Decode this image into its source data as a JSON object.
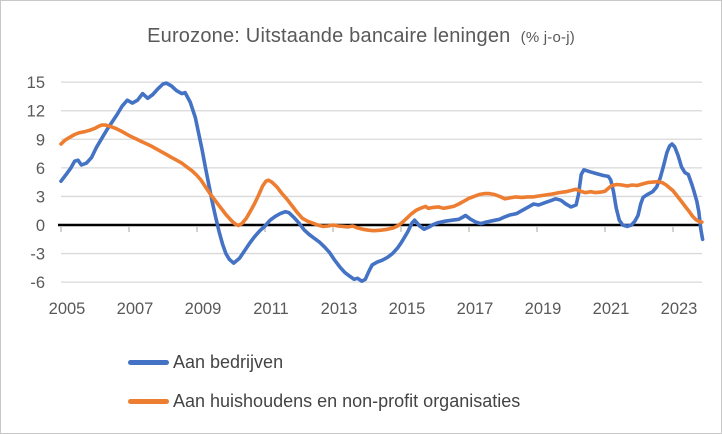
{
  "title": {
    "text": "Eurozone: Uitstaande bancaire leningen",
    "suffix": "(% j-o-j)"
  },
  "legend": [
    {
      "label": "Aan bedrijven",
      "color": "#4472C4"
    },
    {
      "label": "Aan huishoudens en non-profit organisaties",
      "color": "#ED7D31"
    }
  ],
  "colors": {
    "background": "#FFFFFF",
    "border": "#C8C8C8",
    "grid": "#D9D9D9",
    "zero_axis": "#000000",
    "tick": "#A6A6A6",
    "axis_text": "#595959",
    "series_blue": "#4472C4",
    "series_orange": "#ED7D31"
  },
  "chart_data": {
    "type": "line",
    "title": "Eurozone: Uitstaande bancaire leningen (% j-o-j)",
    "xlabel": "",
    "ylabel": "",
    "ylim": [
      -6,
      15
    ],
    "xlim": [
      2005,
      2023.9
    ],
    "y_ticks": [
      15,
      12,
      9,
      6,
      3,
      0,
      -3,
      -6
    ],
    "x_ticks": [
      2005,
      2007,
      2009,
      2011,
      2013,
      2015,
      2017,
      2019,
      2021,
      2023
    ],
    "grid": "horizontal",
    "legend_position": "bottom-left",
    "series": [
      {
        "name": "Aan bedrijven",
        "color": "#4472C4",
        "points": [
          [
            2005.0,
            4.6
          ],
          [
            2005.15,
            5.3
          ],
          [
            2005.29,
            6.0
          ],
          [
            2005.4,
            6.7
          ],
          [
            2005.5,
            6.8
          ],
          [
            2005.6,
            6.3
          ],
          [
            2005.75,
            6.5
          ],
          [
            2005.9,
            7.1
          ],
          [
            2006.05,
            8.2
          ],
          [
            2006.2,
            9.1
          ],
          [
            2006.35,
            10.0
          ],
          [
            2006.5,
            10.8
          ],
          [
            2006.65,
            11.6
          ],
          [
            2006.8,
            12.5
          ],
          [
            2006.95,
            13.1
          ],
          [
            2007.1,
            12.8
          ],
          [
            2007.25,
            13.1
          ],
          [
            2007.4,
            13.8
          ],
          [
            2007.55,
            13.3
          ],
          [
            2007.7,
            13.7
          ],
          [
            2007.85,
            14.3
          ],
          [
            2008.0,
            14.8
          ],
          [
            2008.1,
            14.9
          ],
          [
            2008.25,
            14.6
          ],
          [
            2008.4,
            14.1
          ],
          [
            2008.55,
            13.8
          ],
          [
            2008.65,
            13.9
          ],
          [
            2008.8,
            12.9
          ],
          [
            2008.95,
            11.3
          ],
          [
            2009.05,
            9.6
          ],
          [
            2009.15,
            7.9
          ],
          [
            2009.25,
            6.0
          ],
          [
            2009.35,
            4.2
          ],
          [
            2009.45,
            2.4
          ],
          [
            2009.55,
            0.8
          ],
          [
            2009.65,
            -0.7
          ],
          [
            2009.75,
            -2.0
          ],
          [
            2009.85,
            -3.0
          ],
          [
            2009.95,
            -3.6
          ],
          [
            2010.08,
            -4.0
          ],
          [
            2010.25,
            -3.5
          ],
          [
            2010.4,
            -2.7
          ],
          [
            2010.55,
            -1.9
          ],
          [
            2010.7,
            -1.2
          ],
          [
            2010.85,
            -0.6
          ],
          [
            2011.0,
            -0.1
          ],
          [
            2011.15,
            0.5
          ],
          [
            2011.3,
            0.9
          ],
          [
            2011.45,
            1.2
          ],
          [
            2011.6,
            1.4
          ],
          [
            2011.7,
            1.3
          ],
          [
            2011.85,
            0.8
          ],
          [
            2012.0,
            0.2
          ],
          [
            2012.15,
            -0.5
          ],
          [
            2012.3,
            -1.0
          ],
          [
            2012.45,
            -1.4
          ],
          [
            2012.6,
            -1.8
          ],
          [
            2012.75,
            -2.3
          ],
          [
            2012.9,
            -2.9
          ],
          [
            2013.05,
            -3.7
          ],
          [
            2013.2,
            -4.4
          ],
          [
            2013.35,
            -5.0
          ],
          [
            2013.5,
            -5.4
          ],
          [
            2013.62,
            -5.7
          ],
          [
            2013.72,
            -5.6
          ],
          [
            2013.85,
            -5.9
          ],
          [
            2013.95,
            -5.7
          ],
          [
            2014.05,
            -4.9
          ],
          [
            2014.15,
            -4.2
          ],
          [
            2014.3,
            -3.9
          ],
          [
            2014.45,
            -3.7
          ],
          [
            2014.6,
            -3.4
          ],
          [
            2014.75,
            -3.0
          ],
          [
            2014.9,
            -2.4
          ],
          [
            2015.0,
            -1.9
          ],
          [
            2015.1,
            -1.3
          ],
          [
            2015.2,
            -0.7
          ],
          [
            2015.32,
            0.2
          ],
          [
            2015.4,
            0.5
          ],
          [
            2015.55,
            -0.1
          ],
          [
            2015.68,
            -0.45
          ],
          [
            2015.8,
            -0.25
          ],
          [
            2015.95,
            0.05
          ],
          [
            2016.1,
            0.25
          ],
          [
            2016.3,
            0.4
          ],
          [
            2016.5,
            0.5
          ],
          [
            2016.7,
            0.6
          ],
          [
            2016.9,
            1.0
          ],
          [
            2017.05,
            0.6
          ],
          [
            2017.2,
            0.3
          ],
          [
            2017.35,
            0.15
          ],
          [
            2017.5,
            0.3
          ],
          [
            2017.7,
            0.45
          ],
          [
            2017.9,
            0.6
          ],
          [
            2018.05,
            0.85
          ],
          [
            2018.2,
            1.05
          ],
          [
            2018.4,
            1.2
          ],
          [
            2018.55,
            1.5
          ],
          [
            2018.75,
            1.9
          ],
          [
            2018.9,
            2.2
          ],
          [
            2019.05,
            2.1
          ],
          [
            2019.2,
            2.3
          ],
          [
            2019.4,
            2.55
          ],
          [
            2019.55,
            2.75
          ],
          [
            2019.7,
            2.6
          ],
          [
            2019.85,
            2.2
          ],
          [
            2020.0,
            1.9
          ],
          [
            2020.15,
            2.1
          ],
          [
            2020.22,
            3.2
          ],
          [
            2020.3,
            5.3
          ],
          [
            2020.38,
            5.8
          ],
          [
            2020.55,
            5.6
          ],
          [
            2020.75,
            5.4
          ],
          [
            2020.95,
            5.2
          ],
          [
            2021.1,
            5.1
          ],
          [
            2021.17,
            4.7
          ],
          [
            2021.25,
            3.5
          ],
          [
            2021.33,
            1.8
          ],
          [
            2021.42,
            0.5
          ],
          [
            2021.52,
            0.0
          ],
          [
            2021.65,
            -0.15
          ],
          [
            2021.78,
            0.0
          ],
          [
            2021.88,
            0.4
          ],
          [
            2021.97,
            1.0
          ],
          [
            2022.05,
            2.2
          ],
          [
            2022.12,
            2.9
          ],
          [
            2022.25,
            3.2
          ],
          [
            2022.4,
            3.5
          ],
          [
            2022.52,
            4.0
          ],
          [
            2022.62,
            4.9
          ],
          [
            2022.72,
            6.2
          ],
          [
            2022.82,
            7.6
          ],
          [
            2022.9,
            8.3
          ],
          [
            2022.97,
            8.5
          ],
          [
            2023.05,
            8.2
          ],
          [
            2023.15,
            7.3
          ],
          [
            2023.25,
            6.1
          ],
          [
            2023.35,
            5.5
          ],
          [
            2023.45,
            5.3
          ],
          [
            2023.55,
            4.3
          ],
          [
            2023.62,
            3.5
          ],
          [
            2023.7,
            2.5
          ],
          [
            2023.76,
            1.4
          ],
          [
            2023.82,
            -0.5
          ],
          [
            2023.87,
            -1.5
          ]
        ]
      },
      {
        "name": "Aan huishoudens en non-profit organisaties",
        "color": "#ED7D31",
        "points": [
          [
            2005.0,
            8.5
          ],
          [
            2005.12,
            8.9
          ],
          [
            2005.25,
            9.2
          ],
          [
            2005.4,
            9.5
          ],
          [
            2005.55,
            9.7
          ],
          [
            2005.7,
            9.8
          ],
          [
            2005.85,
            9.95
          ],
          [
            2006.0,
            10.15
          ],
          [
            2006.1,
            10.35
          ],
          [
            2006.2,
            10.5
          ],
          [
            2006.3,
            10.5
          ],
          [
            2006.45,
            10.35
          ],
          [
            2006.6,
            10.15
          ],
          [
            2006.75,
            9.9
          ],
          [
            2006.9,
            9.6
          ],
          [
            2007.05,
            9.3
          ],
          [
            2007.2,
            9.05
          ],
          [
            2007.35,
            8.8
          ],
          [
            2007.5,
            8.55
          ],
          [
            2007.65,
            8.3
          ],
          [
            2007.8,
            8.0
          ],
          [
            2007.95,
            7.7
          ],
          [
            2008.1,
            7.4
          ],
          [
            2008.25,
            7.1
          ],
          [
            2008.4,
            6.8
          ],
          [
            2008.55,
            6.5
          ],
          [
            2008.7,
            6.1
          ],
          [
            2008.85,
            5.7
          ],
          [
            2009.0,
            5.2
          ],
          [
            2009.12,
            4.7
          ],
          [
            2009.25,
            4.0
          ],
          [
            2009.4,
            3.2
          ],
          [
            2009.55,
            2.5
          ],
          [
            2009.7,
            1.8
          ],
          [
            2009.85,
            1.1
          ],
          [
            2010.0,
            0.5
          ],
          [
            2010.12,
            0.1
          ],
          [
            2010.22,
            -0.05
          ],
          [
            2010.32,
            0.15
          ],
          [
            2010.45,
            0.7
          ],
          [
            2010.58,
            1.5
          ],
          [
            2010.7,
            2.3
          ],
          [
            2010.82,
            3.2
          ],
          [
            2010.93,
            4.1
          ],
          [
            2011.03,
            4.6
          ],
          [
            2011.1,
            4.7
          ],
          [
            2011.2,
            4.5
          ],
          [
            2011.35,
            4.0
          ],
          [
            2011.5,
            3.3
          ],
          [
            2011.65,
            2.7
          ],
          [
            2011.8,
            2.0
          ],
          [
            2011.95,
            1.3
          ],
          [
            2012.1,
            0.7
          ],
          [
            2012.25,
            0.4
          ],
          [
            2012.4,
            0.2
          ],
          [
            2012.55,
            0.0
          ],
          [
            2012.7,
            -0.15
          ],
          [
            2012.85,
            -0.1
          ],
          [
            2013.0,
            0.0
          ],
          [
            2013.15,
            -0.1
          ],
          [
            2013.3,
            -0.15
          ],
          [
            2013.45,
            -0.2
          ],
          [
            2013.58,
            -0.1
          ],
          [
            2013.72,
            -0.3
          ],
          [
            2013.88,
            -0.45
          ],
          [
            2014.05,
            -0.55
          ],
          [
            2014.2,
            -0.6
          ],
          [
            2014.4,
            -0.55
          ],
          [
            2014.6,
            -0.45
          ],
          [
            2014.78,
            -0.3
          ],
          [
            2014.92,
            -0.05
          ],
          [
            2015.05,
            0.3
          ],
          [
            2015.18,
            0.75
          ],
          [
            2015.3,
            1.15
          ],
          [
            2015.45,
            1.55
          ],
          [
            2015.6,
            1.8
          ],
          [
            2015.72,
            1.95
          ],
          [
            2015.8,
            1.75
          ],
          [
            2015.95,
            1.85
          ],
          [
            2016.1,
            1.9
          ],
          [
            2016.25,
            1.75
          ],
          [
            2016.4,
            1.85
          ],
          [
            2016.55,
            1.95
          ],
          [
            2016.7,
            2.2
          ],
          [
            2016.85,
            2.5
          ],
          [
            2017.0,
            2.8
          ],
          [
            2017.15,
            3.0
          ],
          [
            2017.3,
            3.2
          ],
          [
            2017.45,
            3.3
          ],
          [
            2017.6,
            3.3
          ],
          [
            2017.75,
            3.2
          ],
          [
            2017.9,
            3.0
          ],
          [
            2018.05,
            2.75
          ],
          [
            2018.2,
            2.85
          ],
          [
            2018.38,
            2.95
          ],
          [
            2018.55,
            2.9
          ],
          [
            2018.72,
            2.95
          ],
          [
            2018.9,
            2.95
          ],
          [
            2019.05,
            3.05
          ],
          [
            2019.25,
            3.15
          ],
          [
            2019.45,
            3.25
          ],
          [
            2019.65,
            3.4
          ],
          [
            2019.85,
            3.5
          ],
          [
            2020.03,
            3.65
          ],
          [
            2020.15,
            3.75
          ],
          [
            2020.28,
            3.55
          ],
          [
            2020.42,
            3.4
          ],
          [
            2020.58,
            3.5
          ],
          [
            2020.72,
            3.4
          ],
          [
            2020.88,
            3.45
          ],
          [
            2021.0,
            3.55
          ],
          [
            2021.1,
            3.85
          ],
          [
            2021.2,
            4.15
          ],
          [
            2021.35,
            4.25
          ],
          [
            2021.5,
            4.2
          ],
          [
            2021.65,
            4.1
          ],
          [
            2021.8,
            4.2
          ],
          [
            2021.95,
            4.15
          ],
          [
            2022.1,
            4.3
          ],
          [
            2022.25,
            4.45
          ],
          [
            2022.4,
            4.5
          ],
          [
            2022.55,
            4.55
          ],
          [
            2022.68,
            4.45
          ],
          [
            2022.8,
            4.2
          ],
          [
            2022.9,
            3.9
          ],
          [
            2023.0,
            3.6
          ],
          [
            2023.1,
            3.15
          ],
          [
            2023.22,
            2.6
          ],
          [
            2023.35,
            2.0
          ],
          [
            2023.48,
            1.4
          ],
          [
            2023.58,
            0.9
          ],
          [
            2023.68,
            0.55
          ],
          [
            2023.78,
            0.35
          ],
          [
            2023.85,
            0.3
          ]
        ]
      }
    ]
  }
}
